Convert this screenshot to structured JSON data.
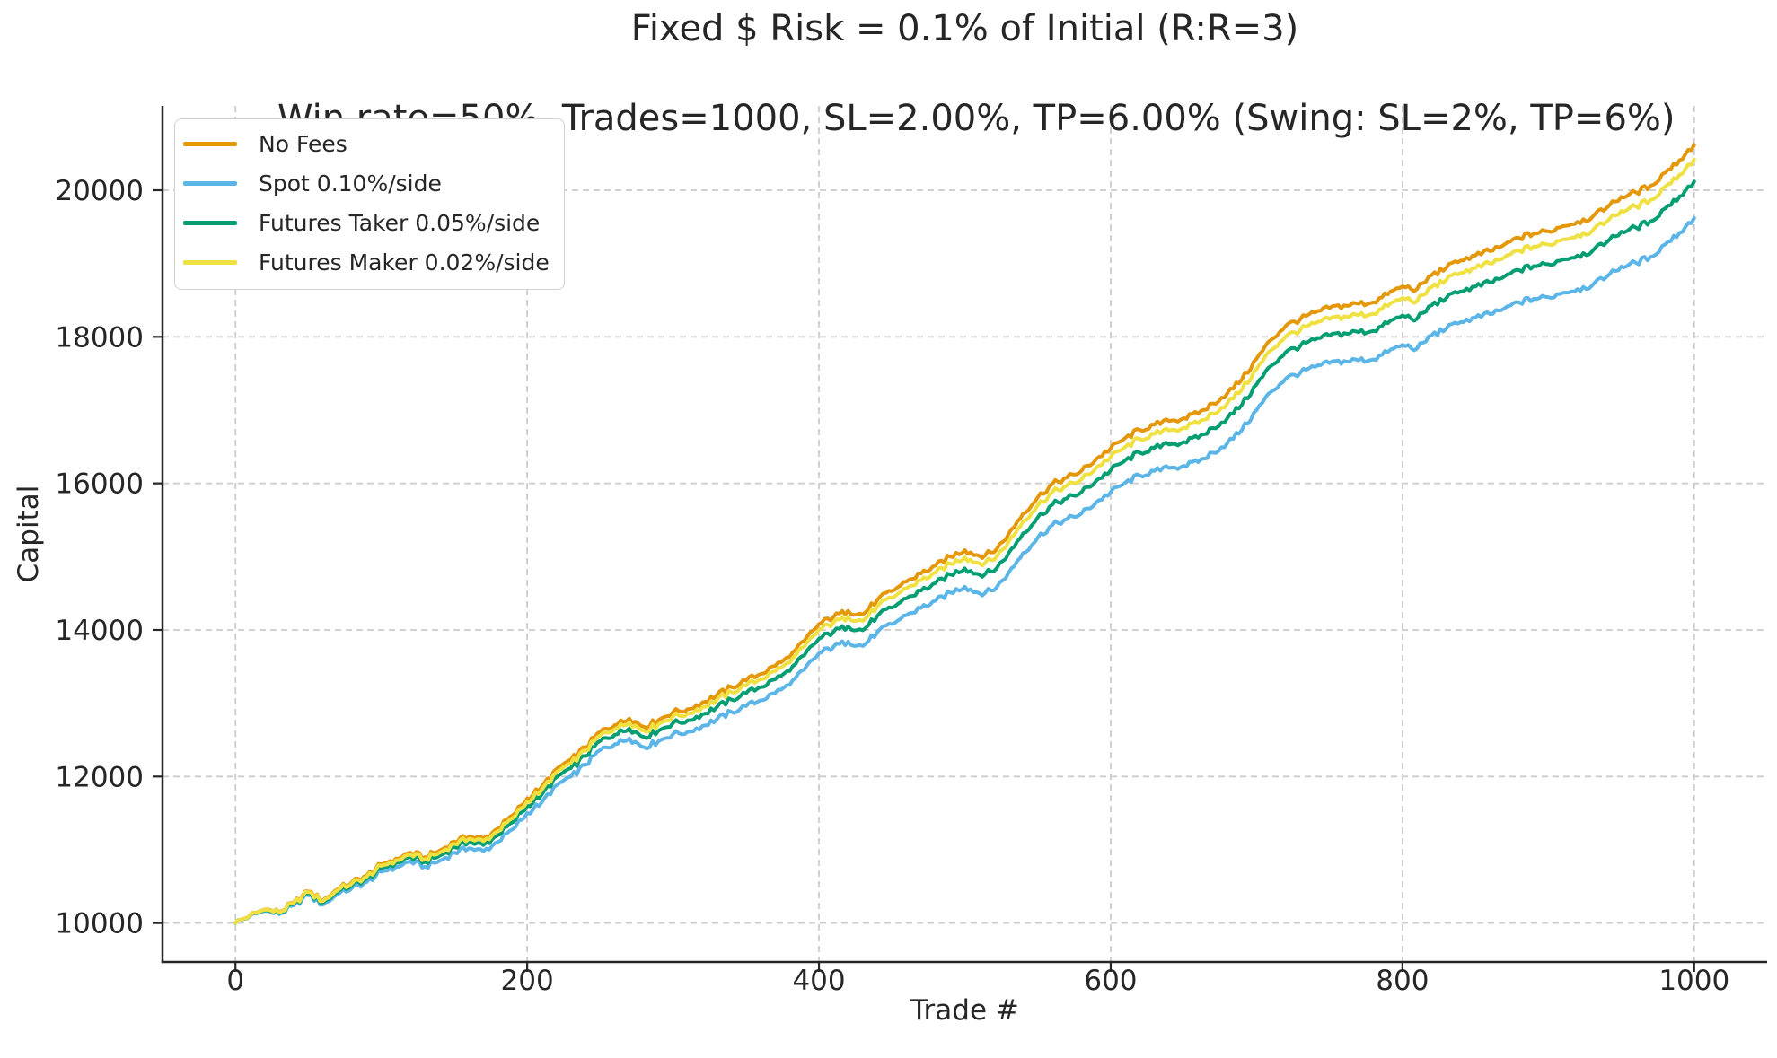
{
  "title": {
    "line1": "Fixed $ Risk = 0.1% of Initial (R:R=3)",
    "line2": "Win rate=50%, Trades=1000, SL=2.00%, TP=6.00% (Swing: SL=2%, TP=6%)"
  },
  "axis_style": {
    "text_color": "#262626",
    "spine_color": "#262626",
    "grid_color": "#cccccc"
  },
  "chart_data": {
    "type": "line",
    "title": "Fixed $ Risk = 0.1% of Initial (R:R=3)\nWin rate=50%, Trades=1000, SL=2.00%, TP=6.00% (Swing: SL=2%, TP=6%)",
    "xlabel": "Trade #",
    "ylabel": "Capital",
    "xlim": [
      -50,
      1050
    ],
    "ylim": [
      9469,
      21151
    ],
    "xticks": [
      0,
      200,
      400,
      600,
      800,
      1000
    ],
    "yticks": [
      10000,
      12000,
      14000,
      16000,
      18000,
      20000
    ],
    "grid": {
      "on": true,
      "linestyle": "dashed"
    },
    "legend_position": "upper left",
    "render_jitter": 40,
    "x": [
      0,
      10,
      20,
      30,
      40,
      50,
      60,
      70,
      80,
      90,
      100,
      110,
      120,
      130,
      140,
      150,
      160,
      170,
      180,
      190,
      200,
      210,
      220,
      230,
      240,
      250,
      260,
      270,
      280,
      290,
      300,
      310,
      320,
      330,
      340,
      350,
      360,
      370,
      380,
      390,
      400,
      410,
      420,
      430,
      440,
      450,
      460,
      470,
      480,
      490,
      500,
      510,
      520,
      530,
      540,
      550,
      560,
      570,
      580,
      590,
      600,
      610,
      620,
      630,
      640,
      650,
      660,
      670,
      680,
      690,
      700,
      710,
      720,
      730,
      740,
      750,
      760,
      770,
      780,
      790,
      800,
      810,
      820,
      830,
      840,
      850,
      860,
      870,
      880,
      890,
      900,
      910,
      920,
      930,
      940,
      950,
      960,
      970,
      980,
      990,
      1000
    ],
    "series": [
      {
        "name": "No Fees",
        "color": "#E49709",
        "values": [
          10000,
          10110,
          10185,
          10150,
          10280,
          10430,
          10310,
          10460,
          10560,
          10650,
          10800,
          10880,
          10960,
          10900,
          10990,
          11110,
          11180,
          11150,
          11290,
          11470,
          11700,
          11860,
          12100,
          12230,
          12400,
          12610,
          12700,
          12790,
          12680,
          12770,
          12880,
          12920,
          13010,
          13110,
          13220,
          13310,
          13400,
          13510,
          13630,
          13850,
          14080,
          14180,
          14260,
          14210,
          14410,
          14530,
          14660,
          14770,
          14880,
          15000,
          15090,
          15010,
          15060,
          15310,
          15590,
          15810,
          15990,
          16080,
          16170,
          16330,
          16480,
          16620,
          16730,
          16800,
          16850,
          16890,
          16950,
          17090,
          17230,
          17420,
          17700,
          17960,
          18150,
          18240,
          18330,
          18390,
          18430,
          18450,
          18470,
          18580,
          18690,
          18650,
          18840,
          18940,
          19040,
          19110,
          19170,
          19260,
          19350,
          19410,
          19440,
          19510,
          19570,
          19630,
          19760,
          19910,
          19970,
          20060,
          20240,
          20410,
          20620
        ]
      },
      {
        "name": "Spot 0.10%/side",
        "color": "#5BB5E7",
        "values": [
          10000,
          10100,
          10165,
          10120,
          10240,
          10380,
          10250,
          10390,
          10480,
          10560,
          10700,
          10770,
          10840,
          10770,
          10850,
          10960,
          11020,
          10980,
          11110,
          11280,
          11500,
          11650,
          11880,
          12000,
          12160,
          12360,
          12440,
          12520,
          12400,
          12480,
          12580,
          12610,
          12690,
          12780,
          12880,
          12960,
          13040,
          13140,
          13250,
          13460,
          13680,
          13770,
          13840,
          13780,
          13970,
          14080,
          14200,
          14300,
          14400,
          14510,
          14590,
          14500,
          14540,
          14780,
          15050,
          15260,
          15430,
          15510,
          15590,
          15740,
          15880,
          16010,
          16110,
          16170,
          16210,
          16240,
          16290,
          16420,
          16550,
          16730,
          17000,
          17250,
          17430,
          17510,
          17590,
          17640,
          17670,
          17680,
          17690,
          17790,
          17890,
          17840,
          18020,
          18110,
          18200,
          18260,
          18310,
          18390,
          18470,
          18520,
          18540,
          18600,
          18650,
          18700,
          18820,
          18960,
          19010,
          19090,
          19260,
          19420,
          19620
        ]
      },
      {
        "name": "Futures Taker 0.05%/side",
        "color": "#059E73",
        "values": [
          10000,
          10105,
          10175,
          10135,
          10260,
          10405,
          10280,
          10425,
          10520,
          10605,
          10750,
          10825,
          10900,
          10835,
          10920,
          11035,
          11100,
          11065,
          11200,
          11375,
          11600,
          11755,
          11990,
          12115,
          12280,
          12485,
          12570,
          12655,
          12540,
          12625,
          12730,
          12765,
          12850,
          12945,
          13050,
          13135,
          13220,
          13325,
          13440,
          13655,
          13880,
          13975,
          14050,
          13995,
          14190,
          14305,
          14430,
          14535,
          14640,
          14755,
          14840,
          14755,
          14800,
          15045,
          15320,
          15535,
          15710,
          15795,
          15880,
          16035,
          16180,
          16315,
          16420,
          16485,
          16530,
          16565,
          16620,
          16755,
          16890,
          17075,
          17350,
          17605,
          17790,
          17875,
          17960,
          18015,
          18050,
          18065,
          18080,
          18185,
          18290,
          18245,
          18430,
          18525,
          18620,
          18685,
          18740,
          18825,
          18910,
          18965,
          18990,
          19055,
          19110,
          19165,
          19290,
          19435,
          19490,
          19575,
          19750,
          19915,
          20120
        ]
      },
      {
        "name": "Futures Maker 0.02%/side",
        "color": "#F0E142",
        "values": [
          10000,
          10108,
          10181,
          10144,
          10272,
          10420,
          10298,
          10446,
          10544,
          10632,
          10780,
          10858,
          10936,
          10874,
          10962,
          11080,
          11148,
          11116,
          11254,
          11432,
          11660,
          11818,
          12056,
          12184,
          12352,
          12560,
          12648,
          12736,
          12624,
          12712,
          12820,
          12858,
          12946,
          13044,
          13152,
          13240,
          13328,
          13436,
          13554,
          13772,
          14000,
          14098,
          14176,
          14124,
          14322,
          14440,
          14568,
          14676,
          14784,
          14902,
          14990,
          14908,
          14956,
          15204,
          15482,
          15702,
          15878,
          15966,
          16054,
          16212,
          16360,
          16498,
          16606,
          16674,
          16722,
          16760,
          16818,
          16956,
          17094,
          17282,
          17560,
          17818,
          18006,
          18094,
          18182,
          18240,
          18278,
          18296,
          18314,
          18422,
          18530,
          18488,
          18676,
          18774,
          18872,
          18940,
          18998,
          19086,
          19174,
          19232,
          19260,
          19328,
          19386,
          19444,
          19572,
          19720,
          19778,
          19866,
          20044,
          20212,
          20420
        ]
      }
    ]
  }
}
